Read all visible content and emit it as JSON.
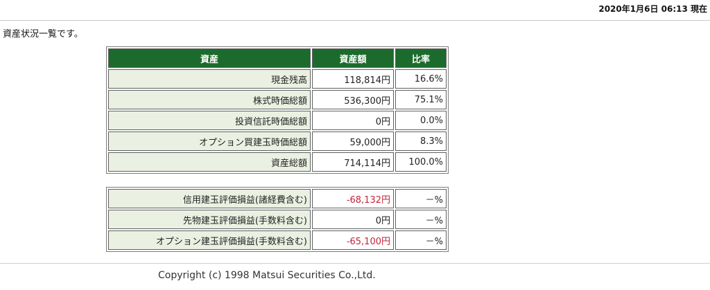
{
  "header": {
    "datetime": "2020年1月6日 06:13 現在"
  },
  "intro": "資産状況一覧です。",
  "assets_table": {
    "headers": {
      "asset": "資産",
      "amount": "資産額",
      "ratio": "比率"
    },
    "rows": [
      {
        "label": "現金残高",
        "amount": "118,814円",
        "ratio": "16.6%"
      },
      {
        "label": "株式時価総額",
        "amount": "536,300円",
        "ratio": "75.1%"
      },
      {
        "label": "投資信託時価総額",
        "amount": "0円",
        "ratio": "0.0%"
      },
      {
        "label": "オプション買建玉時価総額",
        "amount": "59,000円",
        "ratio": "8.3%"
      },
      {
        "label": "資産総額",
        "amount": "714,114円",
        "ratio": "100.0%"
      }
    ]
  },
  "pl_table": {
    "rows": [
      {
        "label": "信用建玉評価損益(諸経費含む)",
        "amount": "-68,132円",
        "ratio": "－%"
      },
      {
        "label": "先物建玉評価損益(手数料含む)",
        "amount": "0円",
        "ratio": "－%"
      },
      {
        "label": "オプション建玉評価損益(手数料含む)",
        "amount": "-65,100円",
        "ratio": "－%"
      }
    ]
  },
  "colors": {
    "header_green": "#1c6b2c",
    "label_bg": "#eaf1e2",
    "negative_red": "#c0243c"
  },
  "footer": {
    "copyright": "Copyright (c) 1998 Matsui Securities Co.,Ltd."
  }
}
